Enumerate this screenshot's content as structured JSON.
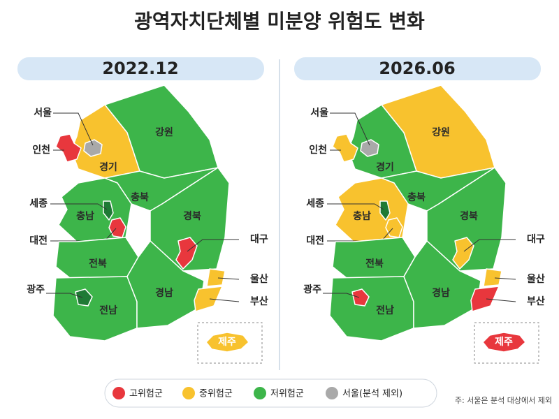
{
  "title": "광역자치단체별 미분양 위험도 변화",
  "panels": [
    {
      "period": "2022.12",
      "regions": [
        {
          "name": "강원",
          "color": "#3db54a"
        },
        {
          "name": "경기",
          "color": "#f8c22e"
        },
        {
          "name": "서울",
          "color": "#a9a9a9"
        },
        {
          "name": "인천",
          "color": "#e8373d"
        },
        {
          "name": "충북",
          "color": "#3db54a"
        },
        {
          "name": "충남",
          "color": "#3db54a"
        },
        {
          "name": "세종",
          "color": "#1f7a35"
        },
        {
          "name": "대전",
          "color": "#e8373d"
        },
        {
          "name": "경북",
          "color": "#3db54a"
        },
        {
          "name": "대구",
          "color": "#e8373d"
        },
        {
          "name": "전북",
          "color": "#3db54a"
        },
        {
          "name": "전남",
          "color": "#3db54a"
        },
        {
          "name": "광주",
          "color": "#1f7a35"
        },
        {
          "name": "경남",
          "color": "#3db54a"
        },
        {
          "name": "울산",
          "color": "#f8c22e"
        },
        {
          "name": "부산",
          "color": "#f8c22e"
        },
        {
          "name": "제주",
          "color": "#f8c22e"
        }
      ]
    },
    {
      "period": "2026.06",
      "regions": [
        {
          "name": "강원",
          "color": "#f8c22e"
        },
        {
          "name": "경기",
          "color": "#3db54a"
        },
        {
          "name": "서울",
          "color": "#a9a9a9"
        },
        {
          "name": "인천",
          "color": "#f8c22e"
        },
        {
          "name": "충북",
          "color": "#3db54a"
        },
        {
          "name": "충남",
          "color": "#f8c22e"
        },
        {
          "name": "세종",
          "color": "#1f7a35"
        },
        {
          "name": "대전",
          "color": "#f8c22e"
        },
        {
          "name": "경북",
          "color": "#3db54a"
        },
        {
          "name": "대구",
          "color": "#f8c22e"
        },
        {
          "name": "전북",
          "color": "#3db54a"
        },
        {
          "name": "전남",
          "color": "#3db54a"
        },
        {
          "name": "광주",
          "color": "#e8373d"
        },
        {
          "name": "경남",
          "color": "#3db54a"
        },
        {
          "name": "울산",
          "color": "#f8c22e"
        },
        {
          "name": "부산",
          "color": "#e8373d"
        },
        {
          "name": "제주",
          "color": "#e8373d"
        }
      ]
    }
  ],
  "legend": [
    {
      "label": "고위험군",
      "color": "#e8373d"
    },
    {
      "label": "중위험군",
      "color": "#f8c22e"
    },
    {
      "label": "저위험군",
      "color": "#3db54a"
    },
    {
      "label": "서울(분석 제외)",
      "color": "#a9a9a9"
    }
  ],
  "footnote": "주: 서울은 분석 대상에서 제외"
}
